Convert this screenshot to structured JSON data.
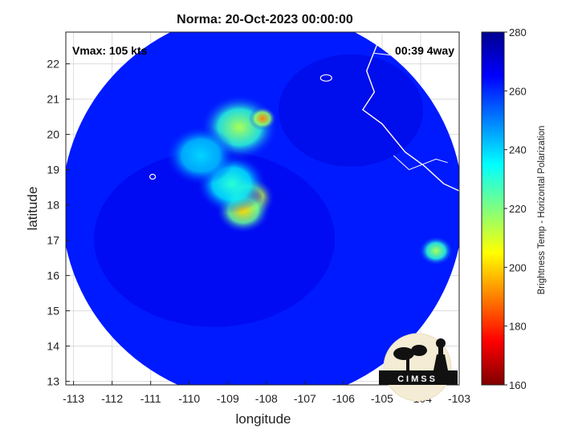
{
  "chart_data": {
    "type": "heatmap",
    "title": "Norma: 20-Oct-2023 00:00:00",
    "xlabel": "longitude",
    "ylabel": "latitude",
    "xlim": [
      -113.2,
      -103
    ],
    "ylim": [
      12.9,
      22.9
    ],
    "x_ticks": [
      -113,
      -112,
      -111,
      -110,
      -109,
      -108,
      -107,
      -106,
      -105,
      -104,
      -103
    ],
    "y_ticks": [
      13,
      14,
      15,
      16,
      17,
      18,
      19,
      20,
      21,
      22
    ],
    "grid": true,
    "storm_center": {
      "lon": -108.4,
      "lat": 18.1
    },
    "swath_center": {
      "lon": -108.1,
      "lat": 17.95
    },
    "annotations": {
      "vmax": "Vmax: 105 kts",
      "time": "00:39 4way"
    },
    "colorbar": {
      "label": "Brightness Temp - Horizontal Polarization",
      "range": [
        160,
        280
      ],
      "ticks": [
        280,
        260,
        240,
        220,
        200,
        180,
        160
      ],
      "colormap": [
        "#7f0000",
        "#ff0000",
        "#ff8000",
        "#ffff00",
        "#80ff80",
        "#00ffff",
        "#0080ff",
        "#0000ff",
        "#00008f"
      ]
    },
    "background_value": 262,
    "features": [
      {
        "name": "eyewall",
        "lon": -108.45,
        "lat": 18.2,
        "tb": 180,
        "spread": 0.33
      },
      {
        "name": "eyewall-ring",
        "lon": -108.6,
        "lat": 17.85,
        "tb": 200,
        "spread": 0.35
      },
      {
        "name": "inner-band",
        "lon": -108.9,
        "lat": 18.6,
        "tb": 230,
        "spread": 0.45
      },
      {
        "name": "north-band",
        "lon": -108.7,
        "lat": 20.2,
        "tb": 215,
        "spread": 0.5
      },
      {
        "name": "north-band-tip",
        "lon": -108.1,
        "lat": 20.45,
        "tb": 190,
        "spread": 0.18
      },
      {
        "name": "west-arc",
        "lon": -109.7,
        "lat": 19.4,
        "tb": 240,
        "spread": 0.45
      },
      {
        "name": "east-spot",
        "lon": -103.6,
        "lat": 16.7,
        "tb": 215,
        "spread": 0.22
      }
    ],
    "logo": "CIMSS"
  }
}
